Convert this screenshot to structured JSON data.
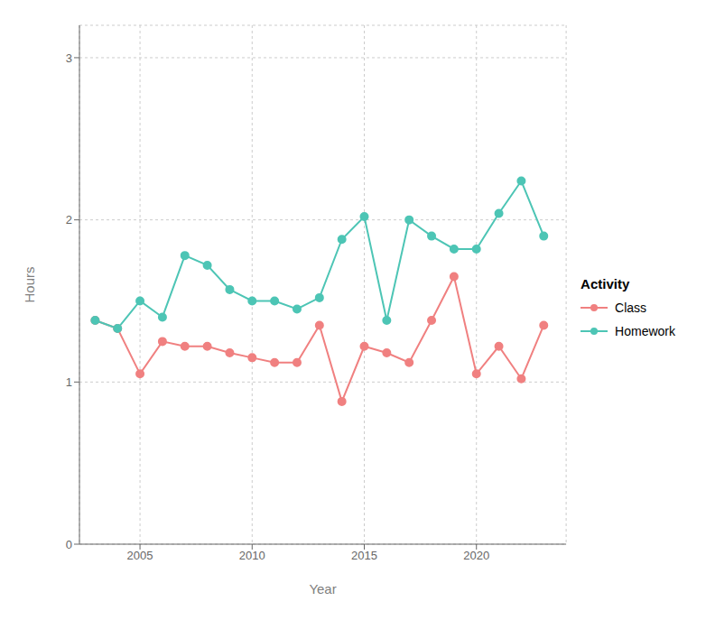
{
  "chart_data": {
    "type": "line",
    "x_label": "Year",
    "y_label": "Hours",
    "legend_title": "Activity",
    "x": [
      2003,
      2004,
      2005,
      2006,
      2007,
      2008,
      2009,
      2010,
      2011,
      2012,
      2013,
      2014,
      2015,
      2016,
      2017,
      2018,
      2019,
      2020,
      2021,
      2022,
      2023
    ],
    "series": [
      {
        "name": "Class",
        "color": "#F08080",
        "marker": "circle",
        "line_style": "solid",
        "values": [
          1.38,
          1.33,
          1.05,
          1.25,
          1.22,
          1.22,
          1.18,
          1.15,
          1.12,
          1.12,
          1.35,
          0.88,
          1.22,
          1.18,
          1.12,
          1.38,
          1.65,
          1.05,
          1.22,
          1.02,
          1.35
        ]
      },
      {
        "name": "Homework",
        "color": "#4DC5B5",
        "marker": "circle",
        "line_style": "solid",
        "values": [
          1.38,
          1.33,
          1.5,
          1.4,
          1.78,
          1.72,
          1.57,
          1.5,
          1.5,
          1.45,
          1.52,
          1.88,
          2.02,
          1.38,
          2.0,
          1.9,
          1.82,
          1.82,
          2.04,
          2.24,
          1.9
        ]
      }
    ],
    "xlim": [
      2002.3,
      2024.0
    ],
    "xticks": [
      2005,
      2010,
      2015,
      2020
    ],
    "ylim": [
      0,
      3.2
    ],
    "yticks": [
      0,
      1,
      2,
      3
    ],
    "grid": true,
    "legend": "right"
  }
}
